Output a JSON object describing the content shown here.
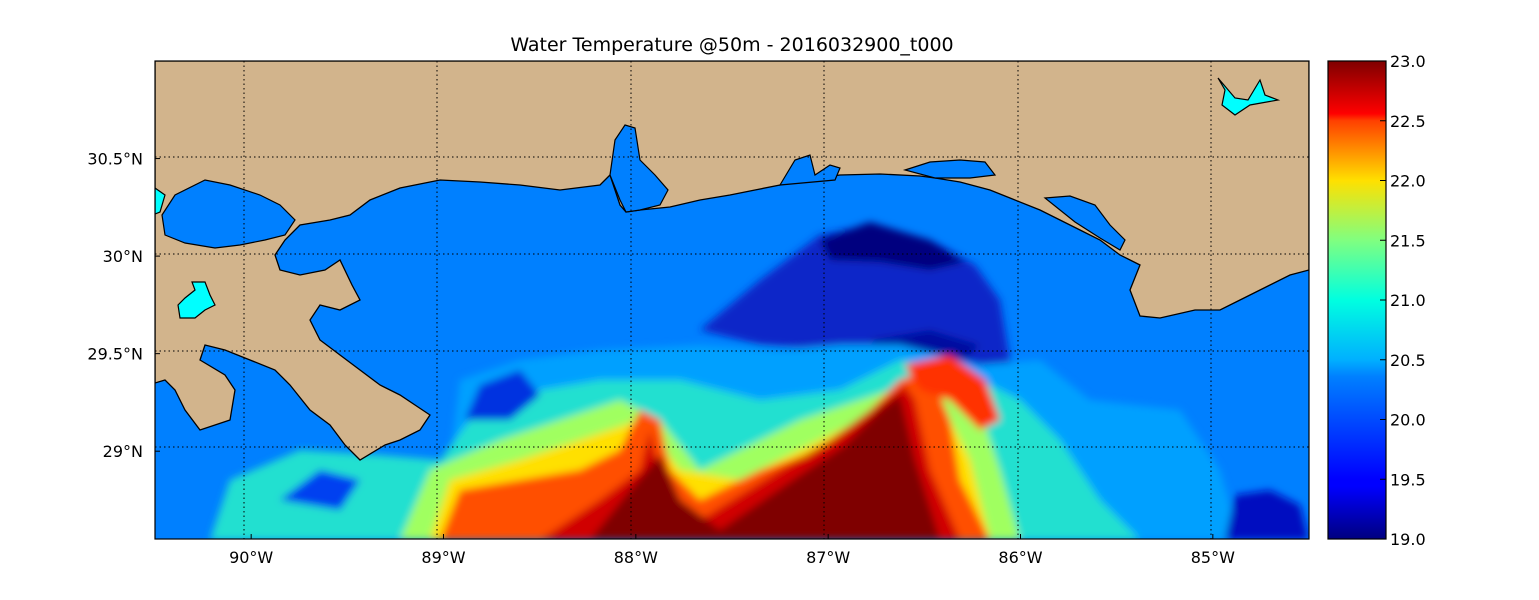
{
  "title": "Water Temperature @50m - 2016032900_t000",
  "map": {
    "projection": "cylindrical",
    "lon_range": [
      -90.5,
      -84.5
    ],
    "lat_range": [
      28.55,
      31.0
    ],
    "land_color": "#D2B48C",
    "water_color": "#0080FF",
    "lake_color": "#00FFFF",
    "grid": "dotted",
    "x_ticks": [
      {
        "value": -90,
        "label": "90°W"
      },
      {
        "value": -89,
        "label": "89°W"
      },
      {
        "value": -88,
        "label": "88°W"
      },
      {
        "value": -87,
        "label": "87°W"
      },
      {
        "value": -86,
        "label": "86°W"
      },
      {
        "value": -85,
        "label": "85°W"
      }
    ],
    "y_ticks": [
      {
        "value": 30.5,
        "label": "30.5°N"
      },
      {
        "value": 30.0,
        "label": "30°N"
      },
      {
        "value": 29.5,
        "label": "29.5°N"
      },
      {
        "value": 29.0,
        "label": "29°N"
      }
    ]
  },
  "colorbar": {
    "colormap": "jet",
    "min": 19.0,
    "max": 23.0,
    "ticks": [
      "19.0",
      "19.5",
      "20.0",
      "20.5",
      "21.0",
      "21.5",
      "22.0",
      "22.5",
      "23.0"
    ]
  }
}
